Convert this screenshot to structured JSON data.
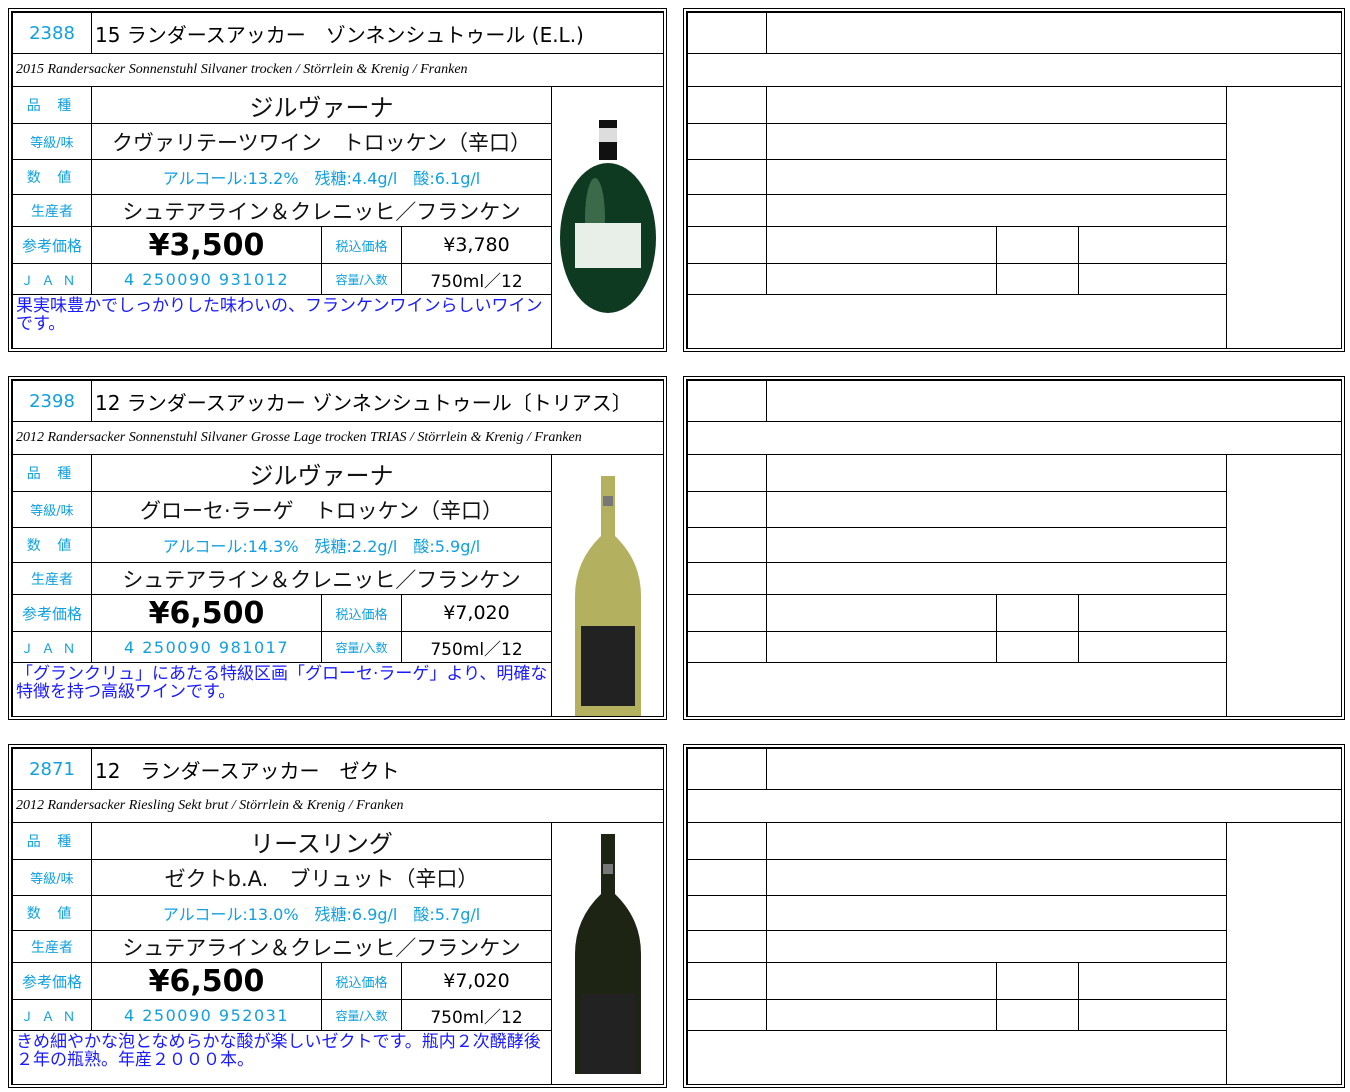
{
  "wines": [
    {
      "code": "2388",
      "name": "15 ランダースアッカー　ゾンネンシュトゥール (E.L.)",
      "english": "2015 Randersacker Sonnenstuhl Silvaner trocken / Störrlein & Krenig / Franken",
      "variety_label": "品 種",
      "variety": "ジルヴァーナ",
      "grade_label": "等級/味",
      "grade": "クヴァリテーツワイン　トロッケン（辛口）",
      "numbers_label": "数 値",
      "numbers": "アルコール:13.2%　残糖:4.4g/l　酸:6.1g/l",
      "producer_label": "生産者",
      "producer": "シュテアライン＆クレニッヒ／フランケン",
      "price_label": "参考価格",
      "price": "¥3,500",
      "tax_label": "税込価格",
      "tax_price": "¥3,780",
      "jan_label": "ＪＡＮ",
      "jan": "4 250090 931012",
      "volume_label": "容量/入数",
      "volume": "750ml／12",
      "description": "果実味豊かでしっかりした味わいの、フランケンワインらしいワインです。"
    },
    {
      "code": "2398",
      "name": "12 ランダースアッカー ゾンネンシュトゥール〔トリアス〕",
      "english": "2012 Randersacker Sonnenstuhl Silvaner Grosse Lage trocken TRIAS / Störrlein & Krenig / Franken",
      "variety_label": "品 種",
      "variety": "ジルヴァーナ",
      "grade_label": "等級/味",
      "grade": "グローセ·ラーゲ　トロッケン（辛口）",
      "numbers_label": "数 値",
      "numbers": "アルコール:14.3%　残糖:2.2g/l　酸:5.9g/l",
      "producer_label": "生産者",
      "producer": "シュテアライン＆クレニッヒ／フランケン",
      "price_label": "参考価格",
      "price": "¥6,500",
      "tax_label": "税込価格",
      "tax_price": "¥7,020",
      "jan_label": "ＪＡＮ",
      "jan": "4 250090 981017",
      "volume_label": "容量/入数",
      "volume": "750ml／12",
      "description": "「グランクリュ」にあたる特級区画「グローセ·ラーゲ」より、明確な特徴を持つ高級ワインです。"
    },
    {
      "code": "2871",
      "name": "12　ランダースアッカー　ゼクト",
      "english": "2012 Randersacker Riesling Sekt brut / Störrlein & Krenig / Franken",
      "variety_label": "品 種",
      "variety": "リースリング",
      "grade_label": "等級/味",
      "grade": "ゼクトb.A.　ブリュット（辛口）",
      "numbers_label": "数 値",
      "numbers": "アルコール:13.0%　残糖:6.9g/l　酸:5.7g/l",
      "producer_label": "生産者",
      "producer": "シュテアライン＆クレニッヒ／フランケン",
      "price_label": "参考価格",
      "price": "¥6,500",
      "tax_label": "税込価格",
      "tax_price": "¥7,020",
      "jan_label": "ＪＡＮ",
      "jan": "4 250090 952031",
      "volume_label": "容量/入数",
      "volume": "750ml／12",
      "description": "きめ細やかな泡となめらかな酸が楽しいゼクトです。瓶内２次醗酵後２年の瓶熟。年産２０００本。"
    }
  ]
}
